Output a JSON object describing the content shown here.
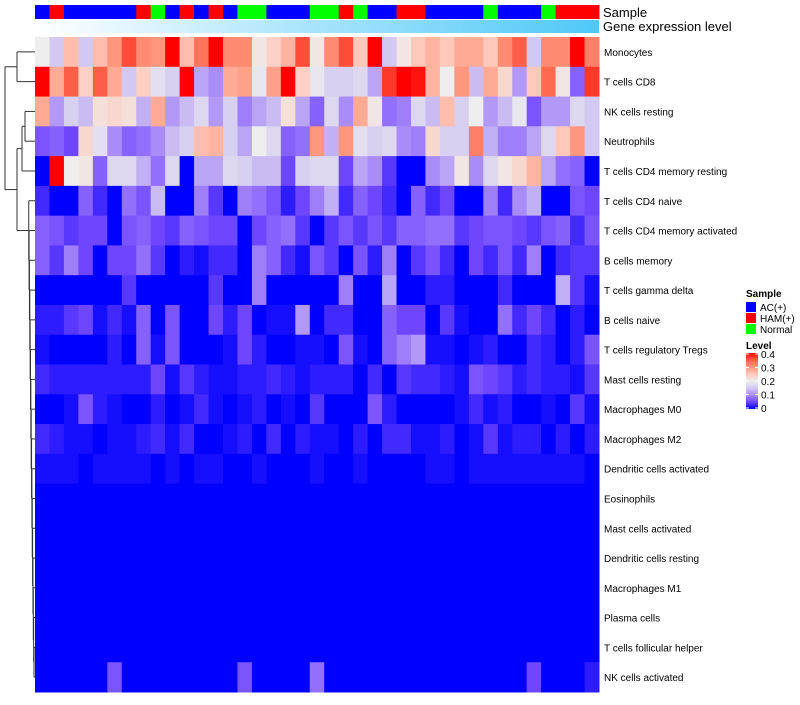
{
  "chart_data": {
    "type": "heatmap",
    "annotations": {
      "sample_title": "Sample",
      "gene_expression_title": "Gene expression level",
      "sample_groups": [
        "AC(+)",
        "HAM(+)",
        "AC(+)",
        "AC(+)",
        "AC(+)",
        "AC(+)",
        "AC(+)",
        "HAM(+)",
        "Normal",
        "AC(+)",
        "HAM(+)",
        "AC(+)",
        "HAM(+)",
        "AC(+)",
        "Normal",
        "Normal",
        "AC(+)",
        "AC(+)",
        "AC(+)",
        "Normal",
        "Normal",
        "HAM(+)",
        "Normal",
        "AC(+)",
        "AC(+)",
        "HAM(+)",
        "HAM(+)",
        "AC(+)",
        "AC(+)",
        "AC(+)",
        "AC(+)",
        "Normal",
        "AC(+)",
        "AC(+)",
        "AC(+)",
        "Normal",
        "HAM(+)",
        "HAM(+)",
        "HAM(+)"
      ]
    },
    "rows": [
      "Monocytes",
      "T cells CD8",
      "NK cells resting",
      "Neutrophils",
      "T cells CD4 memory resting",
      "T cells CD4 naive",
      "T cells CD4 memory activated",
      "B cells memory",
      "T cells gamma delta",
      "B cells naive",
      "T cells regulatory  Tregs",
      "Mast cells resting",
      "Macrophages M0",
      "Macrophages M2",
      "Dendritic cells activated",
      "Eosinophils",
      "Mast cells activated",
      "Dendritic cells resting",
      "Macrophages M1",
      "Plasma cells",
      "T cells follicular helper",
      "NK cells activated"
    ],
    "values": [
      [
        0.2,
        0.15,
        0.26,
        0.15,
        0.26,
        0.3,
        0.36,
        0.31,
        0.3,
        0.4,
        0.26,
        0.33,
        0.4,
        0.31,
        0.31,
        0.21,
        0.24,
        0.27,
        0.36,
        0.21,
        0.31,
        0.36,
        0.25,
        0.4,
        0.15,
        0.21,
        0.25,
        0.27,
        0.25,
        0.28,
        0.28,
        0.25,
        0.31,
        0.35,
        0.15,
        0.31,
        0.31,
        0.4,
        0.32
      ],
      [
        0.4,
        0.28,
        0.35,
        0.24,
        0.35,
        0.28,
        0.15,
        0.24,
        0.18,
        0.16,
        0.4,
        0.12,
        0.1,
        0.28,
        0.29,
        0.19,
        0.29,
        0.4,
        0.24,
        0.19,
        0.16,
        0.16,
        0.17,
        0.12,
        0.37,
        0.4,
        0.39,
        0.27,
        0.2,
        0.3,
        0.14,
        0.28,
        0.23,
        0.11,
        0.25,
        0.34,
        0.21,
        0.07,
        0.37
      ],
      [
        0.28,
        0.11,
        0.16,
        0.14,
        0.22,
        0.23,
        0.22,
        0.13,
        0.28,
        0.11,
        0.14,
        0.17,
        0.11,
        0.16,
        0.09,
        0.12,
        0.14,
        0.22,
        0.12,
        0.07,
        0.17,
        0.1,
        0.28,
        0.21,
        0.08,
        0.09,
        0.17,
        0.14,
        0.26,
        0.16,
        0.2,
        0.11,
        0.14,
        0.19,
        0.06,
        0.11,
        0.11,
        0.17,
        0.15
      ],
      [
        0.06,
        0.07,
        0.05,
        0.23,
        0.18,
        0.1,
        0.07,
        0.08,
        0.1,
        0.14,
        0.16,
        0.26,
        0.27,
        0.16,
        0.12,
        0.2,
        0.17,
        0.07,
        0.08,
        0.3,
        0.13,
        0.3,
        0.18,
        0.16,
        0.17,
        0.1,
        0.09,
        0.23,
        0.16,
        0.16,
        0.32,
        0.13,
        0.09,
        0.09,
        0.12,
        0.17,
        0.25,
        0.3,
        0.15
      ],
      [
        0,
        0.4,
        0.2,
        0.21,
        0.07,
        0.17,
        0.17,
        0.13,
        0.08,
        0.17,
        0,
        0.12,
        0.12,
        0.17,
        0.16,
        0.14,
        0.14,
        0.05,
        0.16,
        0.17,
        0.17,
        0.05,
        0.12,
        0.1,
        0.04,
        0,
        0,
        0.1,
        0.12,
        0.21,
        0.1,
        0.17,
        0.21,
        0.23,
        0.27,
        0.12,
        0.08,
        0.07,
        0
      ],
      [
        0.03,
        0,
        0,
        0.07,
        0.03,
        0,
        0.08,
        0.06,
        0.14,
        0,
        0,
        0.09,
        0.04,
        0,
        0.09,
        0.08,
        0.06,
        0.02,
        0.05,
        0.09,
        0.13,
        0.03,
        0.07,
        0.05,
        0.03,
        0,
        0.07,
        0.03,
        0.05,
        0,
        0,
        0.09,
        0.03,
        0.1,
        0.13,
        0,
        0,
        0.06,
        0.05
      ],
      [
        0.07,
        0.06,
        0.04,
        0.05,
        0.05,
        0,
        0.06,
        0.07,
        0.05,
        0.04,
        0.07,
        0.06,
        0.05,
        0.05,
        0,
        0.05,
        0.07,
        0.08,
        0.04,
        0,
        0.04,
        0.06,
        0.04,
        0.06,
        0.04,
        0.07,
        0.07,
        0.08,
        0.08,
        0.04,
        0.05,
        0.06,
        0.06,
        0.05,
        0.04,
        0.06,
        0.07,
        0.03,
        0.06
      ],
      [
        0.07,
        0.04,
        0.09,
        0.05,
        0,
        0.05,
        0.05,
        0.08,
        0.04,
        0,
        0.02,
        0.01,
        0.03,
        0.03,
        0,
        0.09,
        0.07,
        0.03,
        0.01,
        0.06,
        0.04,
        0,
        0.06,
        0.02,
        0.09,
        0,
        0.04,
        0.06,
        0.03,
        0,
        0.05,
        0.03,
        0.06,
        0.03,
        0.09,
        0,
        0.03,
        0.04,
        0.04
      ],
      [
        0,
        0,
        0,
        0,
        0,
        0,
        0.04,
        0,
        0,
        0,
        0,
        0,
        0.04,
        0,
        0,
        0.09,
        0,
        0,
        0,
        0,
        0,
        0.09,
        0,
        0,
        0.12,
        0,
        0,
        0.02,
        0.02,
        0,
        0,
        0,
        0.03,
        0,
        0,
        0,
        0.13,
        0.04,
        0.01
      ],
      [
        0.02,
        0.02,
        0.04,
        0.05,
        0.01,
        0.03,
        0.01,
        0.07,
        0,
        0.06,
        0,
        0,
        0.05,
        0.02,
        0.05,
        0,
        0.01,
        0.01,
        0.11,
        0,
        0.03,
        0.03,
        0,
        0,
        0.07,
        0.05,
        0.05,
        0,
        0.04,
        0.01,
        0,
        0,
        0.08,
        0.03,
        0.05,
        0.03,
        0,
        0.02,
        0
      ],
      [
        0.01,
        0,
        0,
        0,
        0,
        0.02,
        0,
        0.07,
        0.01,
        0.06,
        0,
        0,
        0,
        0.01,
        0.05,
        0.02,
        0,
        0,
        0.01,
        0.01,
        0,
        0.06,
        0.01,
        0,
        0.07,
        0.09,
        0.11,
        0.01,
        0.01,
        0,
        0.01,
        0.02,
        0,
        0,
        0.03,
        0.02,
        0,
        0.02,
        0.06
      ],
      [
        0.03,
        0.02,
        0.02,
        0.02,
        0.02,
        0.02,
        0.02,
        0.02,
        0.05,
        0.01,
        0.04,
        0.02,
        0.01,
        0.01,
        0.02,
        0.02,
        0.03,
        0.02,
        0.01,
        0.02,
        0.02,
        0.02,
        0,
        0.03,
        0,
        0.04,
        0.03,
        0.03,
        0.02,
        0.01,
        0.06,
        0.05,
        0.04,
        0.02,
        0.03,
        0.02,
        0.02,
        0.01,
        0.04
      ],
      [
        0,
        0,
        0.01,
        0.06,
        0.02,
        0.01,
        0,
        0,
        0.02,
        0,
        0.01,
        0.03,
        0.01,
        0,
        0.01,
        0.02,
        0,
        0.01,
        0,
        0.04,
        0,
        0,
        0,
        0.06,
        0.02,
        0,
        0,
        0,
        0,
        0.01,
        0.03,
        0.01,
        0.02,
        0,
        0,
        0.01,
        0,
        0.04,
        0.01
      ],
      [
        0.03,
        0.02,
        0.01,
        0.01,
        0,
        0.01,
        0.01,
        0.02,
        0.03,
        0.01,
        0.03,
        0,
        0,
        0.01,
        0.02,
        0,
        0.03,
        0,
        0.02,
        0.01,
        0.01,
        0,
        0.02,
        0,
        0.03,
        0.03,
        0.01,
        0.01,
        0.02,
        0,
        0.01,
        0.04,
        0.01,
        0.02,
        0.02,
        0,
        0.02,
        0,
        0.02
      ],
      [
        0.01,
        0.01,
        0.01,
        0,
        0.01,
        0.01,
        0.01,
        0.01,
        0,
        0.01,
        0,
        0.01,
        0.01,
        0,
        0,
        0.01,
        0,
        0,
        0,
        0.01,
        0,
        0,
        0.01,
        0,
        0,
        0,
        0,
        0.01,
        0.01,
        0,
        0.01,
        0.01,
        0.01,
        0.01,
        0.01,
        0.01,
        0.01,
        0.01,
        0
      ],
      [
        0,
        0,
        0,
        0,
        0,
        0,
        0,
        0,
        0,
        0,
        0,
        0,
        0,
        0,
        0,
        0,
        0,
        0,
        0,
        0,
        0,
        0,
        0,
        0,
        0,
        0,
        0,
        0,
        0,
        0,
        0,
        0,
        0,
        0,
        0,
        0,
        0,
        0,
        0
      ],
      [
        0,
        0,
        0,
        0,
        0,
        0,
        0,
        0,
        0,
        0,
        0,
        0,
        0,
        0,
        0,
        0,
        0,
        0,
        0,
        0,
        0,
        0,
        0,
        0,
        0,
        0,
        0,
        0,
        0,
        0,
        0,
        0,
        0,
        0,
        0,
        0,
        0,
        0,
        0
      ],
      [
        0,
        0,
        0,
        0,
        0,
        0,
        0,
        0,
        0,
        0,
        0,
        0,
        0,
        0,
        0,
        0,
        0,
        0,
        0,
        0,
        0,
        0,
        0,
        0,
        0,
        0,
        0,
        0,
        0,
        0,
        0,
        0,
        0,
        0,
        0,
        0,
        0,
        0,
        0
      ],
      [
        0,
        0,
        0,
        0,
        0,
        0,
        0,
        0,
        0,
        0,
        0,
        0,
        0,
        0,
        0,
        0,
        0,
        0,
        0,
        0,
        0,
        0,
        0,
        0,
        0,
        0,
        0,
        0,
        0,
        0,
        0,
        0,
        0,
        0,
        0,
        0,
        0,
        0,
        0
      ],
      [
        0,
        0,
        0,
        0,
        0,
        0,
        0,
        0,
        0,
        0,
        0,
        0,
        0,
        0,
        0,
        0,
        0,
        0,
        0,
        0,
        0,
        0,
        0,
        0,
        0,
        0,
        0,
        0,
        0,
        0,
        0,
        0,
        0,
        0,
        0,
        0,
        0,
        0,
        0
      ],
      [
        0,
        0,
        0,
        0,
        0,
        0,
        0,
        0,
        0,
        0,
        0,
        0,
        0,
        0,
        0,
        0,
        0,
        0,
        0,
        0,
        0,
        0,
        0,
        0,
        0,
        0,
        0,
        0,
        0,
        0,
        0,
        0,
        0,
        0,
        0,
        0,
        0,
        0,
        0
      ],
      [
        0,
        0,
        0,
        0,
        0,
        0.06,
        0,
        0,
        0,
        0,
        0,
        0,
        0,
        0,
        0.06,
        0,
        0,
        0,
        0,
        0.08,
        0,
        0,
        0,
        0,
        0,
        0,
        0,
        0,
        0,
        0,
        0,
        0,
        0,
        0,
        0.05,
        0,
        0,
        0,
        0.02
      ]
    ],
    "color_scale": {
      "min": 0,
      "mid": 0.2,
      "max": 0.4,
      "low": "#0000ff",
      "midColor": "#eeeeee",
      "high": "#ff0000"
    },
    "legend": {
      "sample_title": "Sample",
      "sample_entries": [
        {
          "label": "AC(+)",
          "color": "#0000ff"
        },
        {
          "label": "HAM(+)",
          "color": "#ff0000"
        },
        {
          "label": "Normal",
          "color": "#00ff00"
        }
      ],
      "level_title": "Level",
      "level_ticks": [
        "0.4",
        "0.3",
        "0.2",
        "0.1",
        "0"
      ],
      "placement": "right"
    },
    "gene_expression_colors": [
      "#ffffff",
      "#4ec8f8"
    ],
    "row_dendrogram": true
  }
}
